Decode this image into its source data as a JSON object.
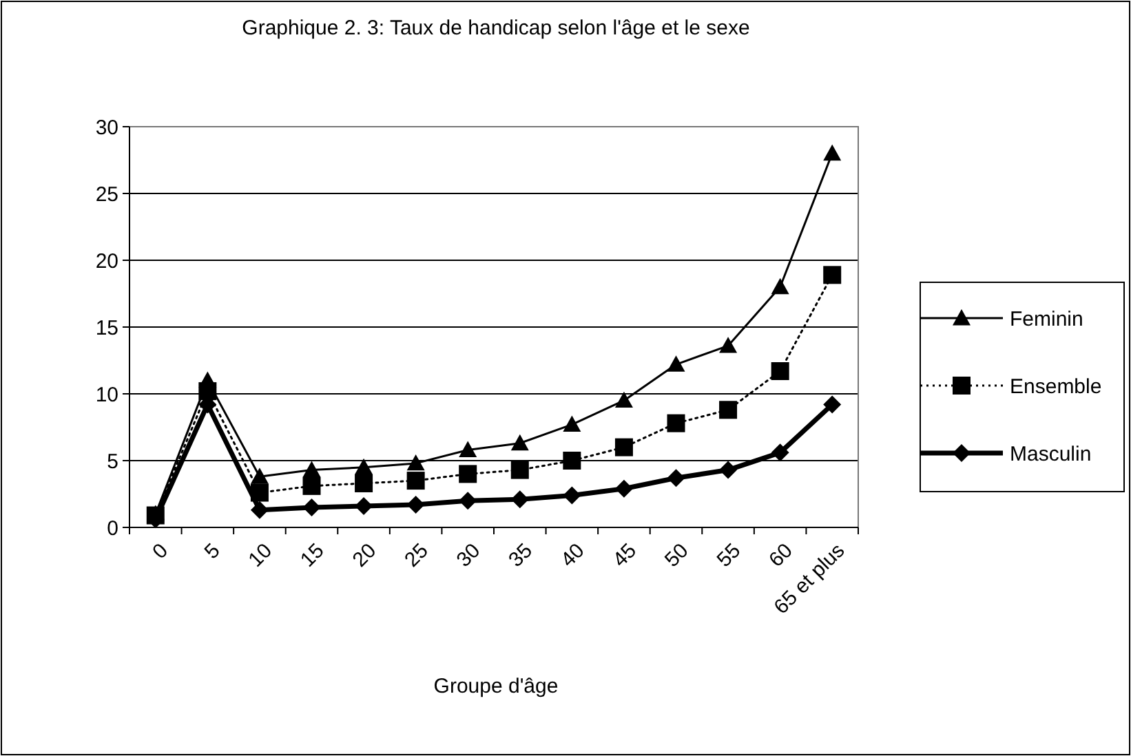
{
  "chart_data": {
    "type": "line",
    "title": "Graphique 2. 3: Taux de handicap selon l'âge et le sexe",
    "xlabel": "Groupe d'âge",
    "categories": [
      "0",
      "5",
      "10",
      "15",
      "20",
      "25",
      "30",
      "35",
      "40",
      "45",
      "50",
      "55",
      "60",
      "65 et plus"
    ],
    "ylim": [
      0,
      30
    ],
    "yticks": [
      0,
      5,
      10,
      15,
      20,
      25,
      30
    ],
    "grid": "y",
    "legend": "right",
    "series": [
      {
        "name": "Feminin",
        "color": "#000000",
        "marker": "triangle",
        "line_style": "solid",
        "values": [
          1,
          11,
          3.8,
          4.3,
          4.5,
          4.8,
          5.8,
          6.3,
          7.7,
          9.5,
          12.2,
          13.6,
          18,
          28
        ]
      },
      {
        "name": "Ensemble",
        "color": "#000000",
        "marker": "square",
        "line_style": "dotted",
        "values": [
          0.9,
          10.2,
          2.6,
          3.1,
          3.3,
          3.5,
          4,
          4.3,
          5,
          6,
          7.8,
          8.8,
          11.7,
          18.9
        ]
      },
      {
        "name": "Masculin",
        "color": "#000000",
        "marker": "diamond",
        "line_style": "solid",
        "values": [
          0.6,
          9.2,
          1.3,
          1.5,
          1.6,
          1.7,
          2,
          2.1,
          2.4,
          2.9,
          3.7,
          4.3,
          5.6,
          9.2
        ]
      }
    ]
  }
}
